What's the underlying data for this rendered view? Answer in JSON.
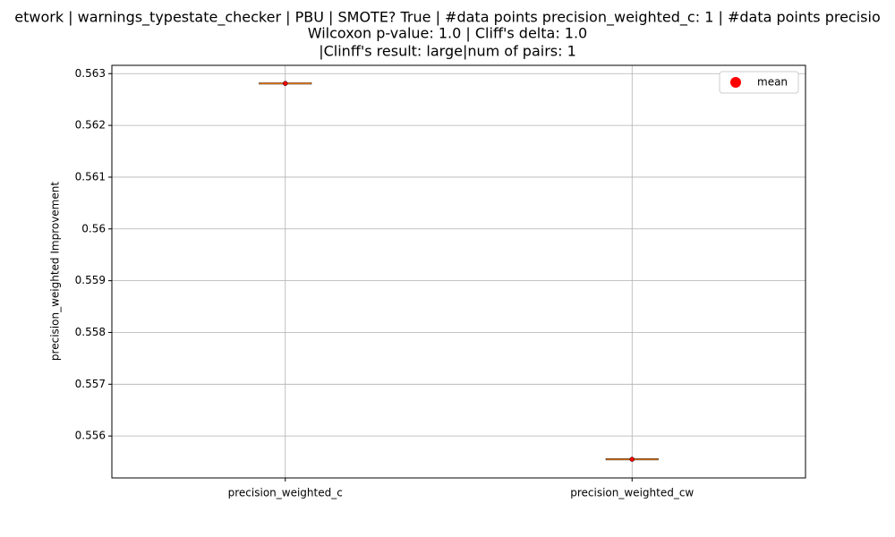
{
  "chart_data": {
    "type": "box",
    "title_lines": [
      "etwork | warnings_typestate_checker | PBU | SMOTE? True | #data points precision_weighted_c: 1 | #data points precisio",
      "Wilcoxon p-value: 1.0 | Cliff's delta: 1.0",
      "|Clinff's result: large|num of pairs: 1"
    ],
    "y_label": "precision_weighted Improvement",
    "categories": [
      "precision_weighted_c",
      "precision_weighted_cw"
    ],
    "values": [
      0.56281,
      0.55555
    ],
    "median_color": "#ff7f0e",
    "mean_color": "#ff0000",
    "legend": {
      "label": "mean",
      "position": "upper right"
    },
    "ylim": [
      0.55519,
      0.56316
    ],
    "yticks": [
      0.556,
      0.557,
      0.558,
      0.559,
      0.56,
      0.561,
      0.562,
      0.563
    ],
    "grid": true
  }
}
